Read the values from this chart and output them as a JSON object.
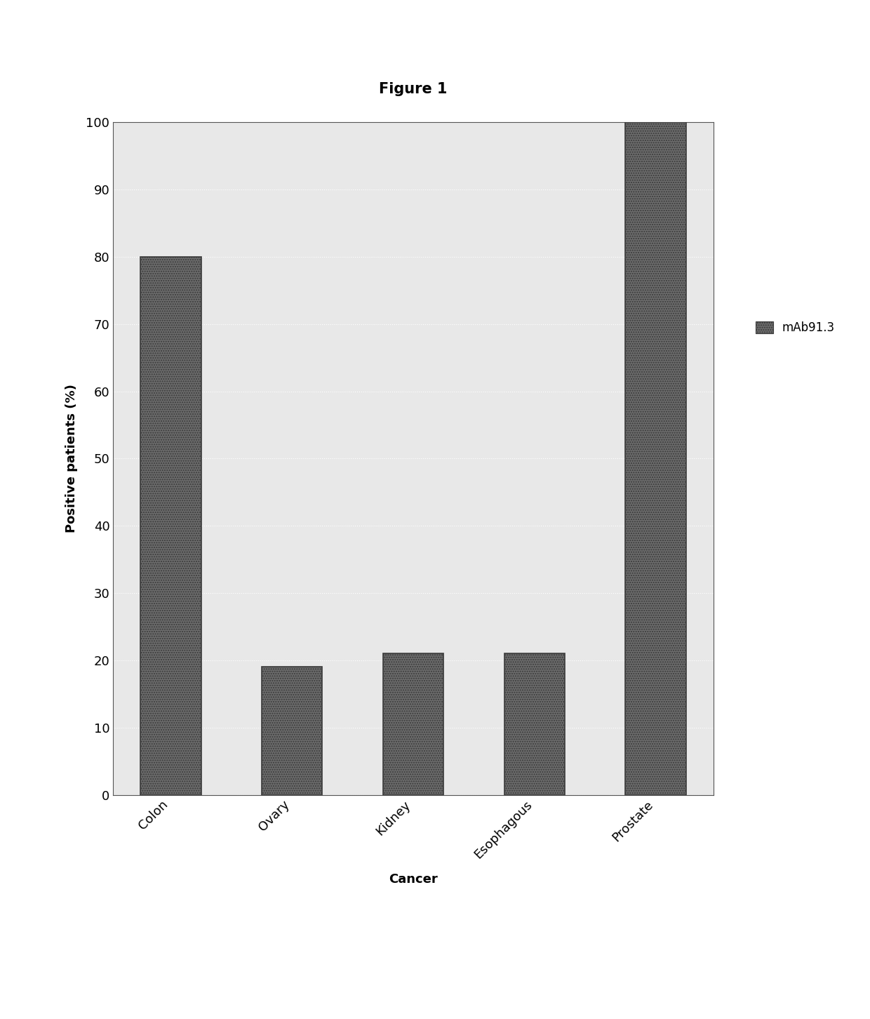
{
  "title": "Figure 1",
  "title_fontsize": 15,
  "title_fontweight": "bold",
  "categories": [
    "Colon",
    "Ovary",
    "Kidney",
    "Esophagous",
    "Prostate"
  ],
  "values": [
    80,
    19,
    21,
    21,
    100
  ],
  "bar_color": "#6b6b6b",
  "bar_hatch": ".....",
  "ylabel": "Positive patients (%)",
  "xlabel": "Cancer",
  "ylabel_fontsize": 13,
  "xlabel_fontsize": 13,
  "xlabel_fontweight": "bold",
  "ylabel_fontweight": "bold",
  "yticks": [
    0,
    10,
    20,
    30,
    40,
    50,
    60,
    70,
    80,
    90,
    100
  ],
  "ylim": [
    0,
    100
  ],
  "legend_label": "mAb91.3",
  "legend_fontsize": 12,
  "tick_fontsize": 13,
  "figure_bg": "#ffffff",
  "plot_bg": "#e8e8e8",
  "grid_color": "#ffffff",
  "grid_style": "dotted",
  "bar_width": 0.5,
  "bar_edge_color": "#3a3a3a",
  "bar_linewidth": 1.2
}
